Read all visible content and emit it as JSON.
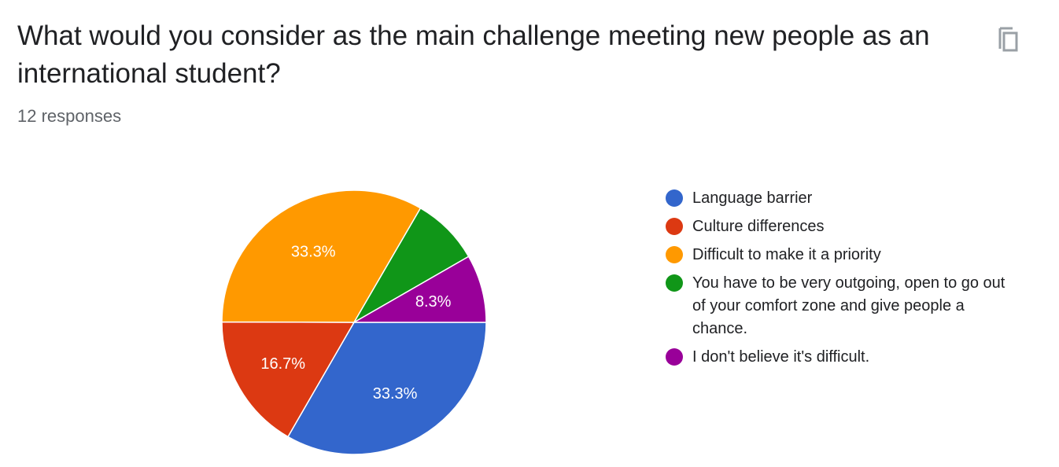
{
  "header": {
    "question": "What would you consider as the main challenge meeting new people as an international student?",
    "responses": "12 responses",
    "copy_icon": "copy-icon"
  },
  "chart_data": {
    "type": "pie",
    "slices": [
      {
        "label": "Language barrier",
        "value": 33.3,
        "display": "33.3%",
        "color": "#3366cc"
      },
      {
        "label": "Culture differences",
        "value": 16.7,
        "display": "16.7%",
        "color": "#dc3912"
      },
      {
        "label": "Difficult to make it a priority",
        "value": 33.3,
        "display": "33.3%",
        "color": "#ff9900"
      },
      {
        "label": "You have to be very outgoing, open to go out of your comfort zone and give people a chance.",
        "value": 8.3,
        "display": "",
        "color": "#109618"
      },
      {
        "label": "I don't believe it's difficult.",
        "value": 8.3,
        "display": "8.3%",
        "color": "#990099"
      }
    ],
    "legend_position": "right"
  }
}
